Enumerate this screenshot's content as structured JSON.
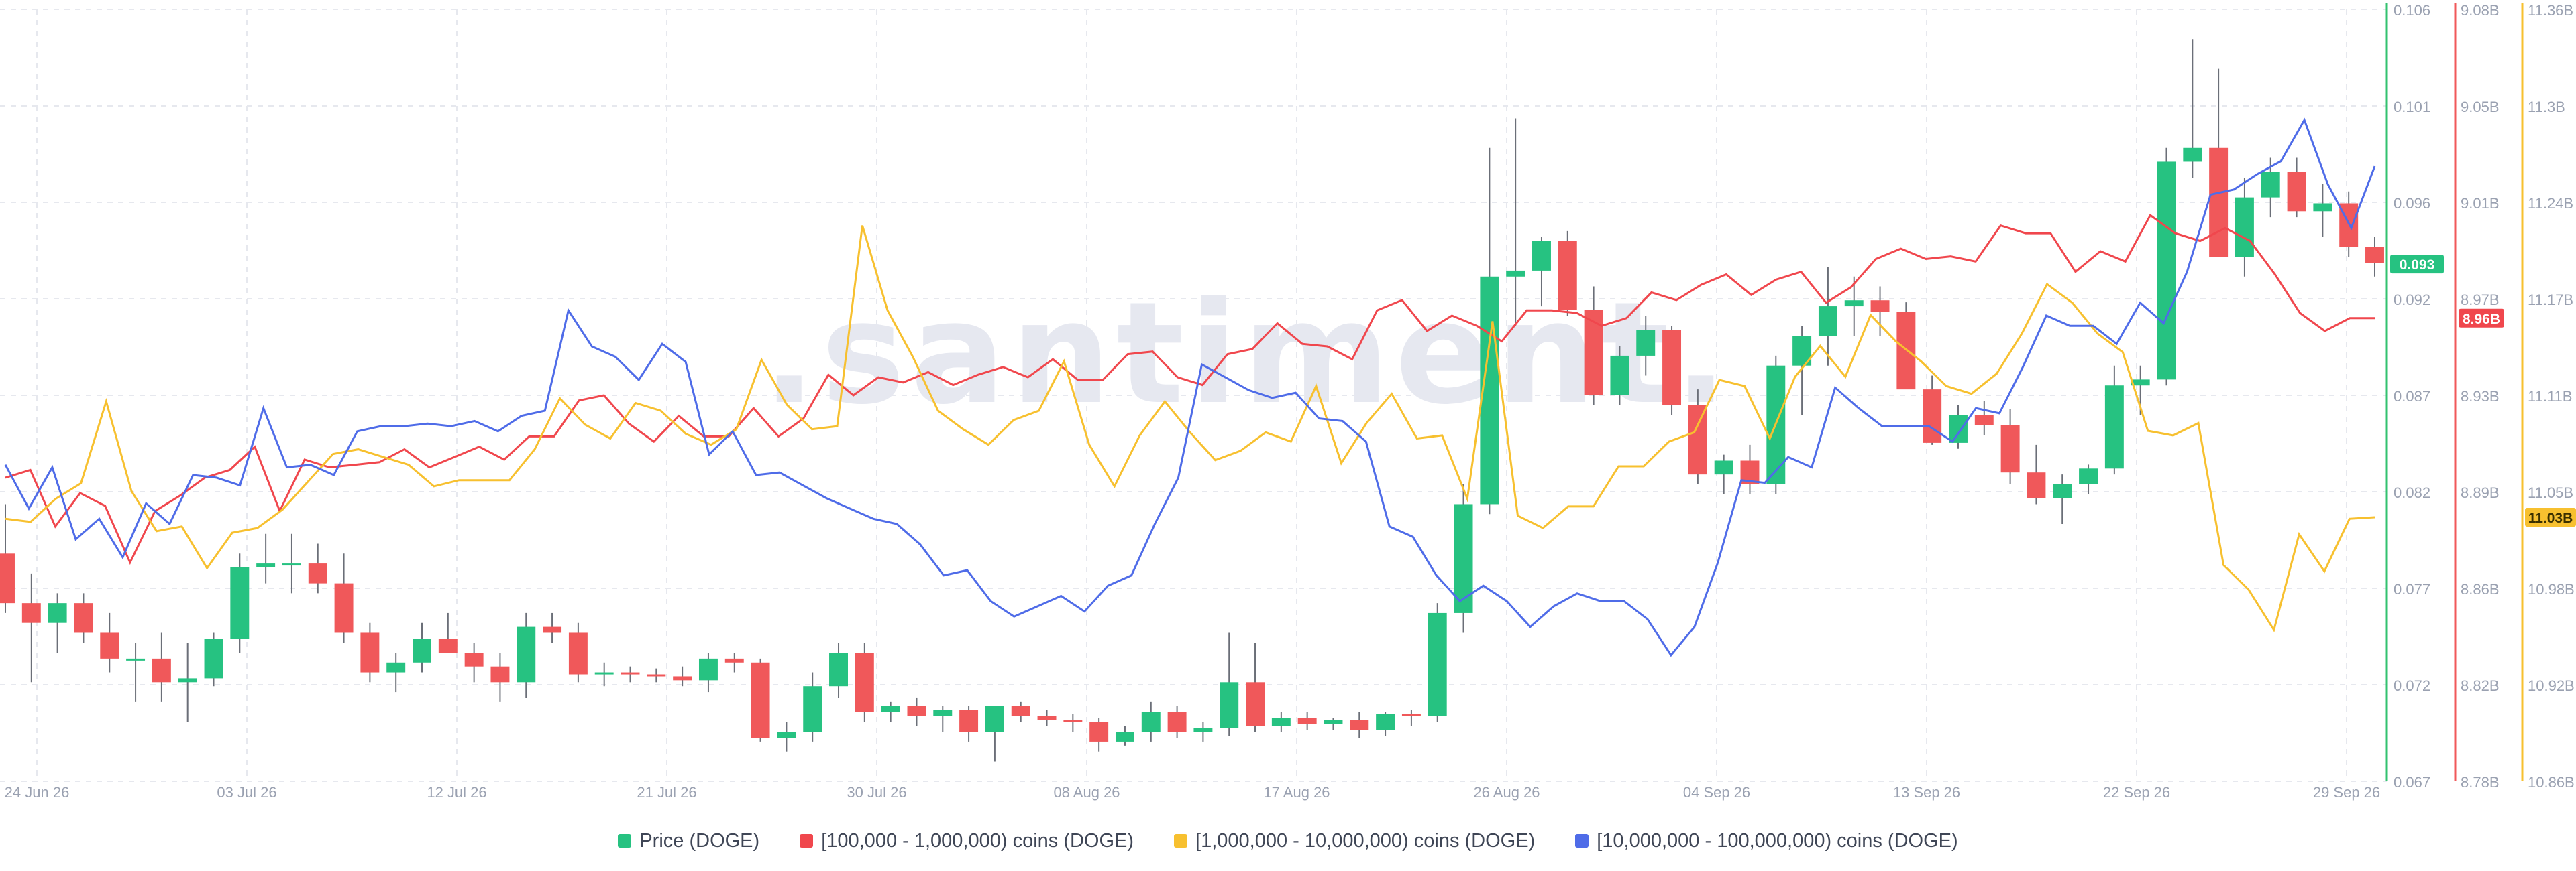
{
  "watermark": ".santiment.",
  "colors": {
    "up": "#26c281",
    "down": "#f0585a",
    "red_series": "#f0474d",
    "yellow_series": "#f7c02f",
    "blue_series": "#4f6ce8",
    "grid": "#e6e8ee",
    "tick_text": "#9aa1b1"
  },
  "chart_data": {
    "type": "line",
    "title": "",
    "x_ticks": [
      "24 Jun 26",
      "03 Jul 26",
      "12 Jul 26",
      "21 Jul 26",
      "30 Jul 26",
      "08 Aug 26",
      "17 Aug 26",
      "26 Aug 26",
      "04 Sep 26",
      "13 Sep 26",
      "22 Sep 26",
      "29 Sep 26"
    ],
    "price_axis": {
      "ticks": [
        "0.106",
        "0.101",
        "0.096",
        "0.092",
        "0.087",
        "0.082",
        "0.077",
        "0.072",
        "0.067"
      ],
      "ylim": [
        0.067,
        0.106
      ],
      "current_label": "0.093"
    },
    "red_axis": {
      "ticks": [
        "9.08B",
        "9.05B",
        "9.01B",
        "8.97B",
        "8.93B",
        "8.89B",
        "8.86B",
        "8.82B",
        "8.78B"
      ],
      "ylim_billions": [
        8.78,
        9.08
      ],
      "current_label": "8.96B"
    },
    "yellow_axis": {
      "ticks": [
        "11.36B",
        "11.3B",
        "11.24B",
        "11.17B",
        "11.11B",
        "11.05B",
        "10.98B",
        "10.92B",
        "10.86B"
      ],
      "ylim_billions": [
        10.86,
        11.36
      ],
      "current_label": "11.03B"
    },
    "series": [
      {
        "name": "Price (DOGE)",
        "kind": "candlestick",
        "ohlc": [
          [
            0.0785,
            0.081,
            0.0755,
            0.076
          ],
          [
            0.076,
            0.0775,
            0.072,
            0.075
          ],
          [
            0.075,
            0.0765,
            0.0735,
            0.076
          ],
          [
            0.076,
            0.0765,
            0.074,
            0.0745
          ],
          [
            0.0745,
            0.0755,
            0.0725,
            0.0732
          ],
          [
            0.0732,
            0.074,
            0.071,
            0.0732
          ],
          [
            0.0732,
            0.0745,
            0.071,
            0.072
          ],
          [
            0.072,
            0.074,
            0.07,
            0.0722
          ],
          [
            0.0722,
            0.0745,
            0.0718,
            0.0742
          ],
          [
            0.0742,
            0.0785,
            0.0735,
            0.0778
          ],
          [
            0.0778,
            0.0795,
            0.077,
            0.078
          ],
          [
            0.078,
            0.0795,
            0.0765,
            0.078
          ],
          [
            0.078,
            0.079,
            0.0765,
            0.077
          ],
          [
            0.077,
            0.0785,
            0.074,
            0.0745
          ],
          [
            0.0745,
            0.075,
            0.072,
            0.0725
          ],
          [
            0.0725,
            0.0735,
            0.0715,
            0.073
          ],
          [
            0.073,
            0.075,
            0.0725,
            0.0742
          ],
          [
            0.0742,
            0.0755,
            0.0735,
            0.0735
          ],
          [
            0.0735,
            0.074,
            0.072,
            0.0728
          ],
          [
            0.0728,
            0.0735,
            0.071,
            0.072
          ],
          [
            0.072,
            0.0755,
            0.0712,
            0.0748
          ],
          [
            0.0748,
            0.0755,
            0.074,
            0.0745
          ],
          [
            0.0745,
            0.075,
            0.072,
            0.0724
          ],
          [
            0.0724,
            0.073,
            0.0718,
            0.0725
          ],
          [
            0.0725,
            0.0728,
            0.072,
            0.0724
          ],
          [
            0.0724,
            0.0727,
            0.072,
            0.0723
          ],
          [
            0.0723,
            0.0728,
            0.0718,
            0.0721
          ],
          [
            0.0721,
            0.0735,
            0.0715,
            0.0732
          ],
          [
            0.0732,
            0.0735,
            0.0725,
            0.073
          ],
          [
            0.073,
            0.0732,
            0.069,
            0.0692
          ],
          [
            0.0692,
            0.07,
            0.0685,
            0.0695
          ],
          [
            0.0695,
            0.0725,
            0.069,
            0.0718
          ],
          [
            0.0718,
            0.074,
            0.0712,
            0.0735
          ],
          [
            0.0735,
            0.074,
            0.07,
            0.0705
          ],
          [
            0.0705,
            0.071,
            0.07,
            0.0708
          ],
          [
            0.0708,
            0.0712,
            0.0698,
            0.0703
          ],
          [
            0.0703,
            0.0708,
            0.0695,
            0.0706
          ],
          [
            0.0706,
            0.0708,
            0.069,
            0.0695
          ],
          [
            0.0695,
            0.0705,
            0.068,
            0.0708
          ],
          [
            0.0708,
            0.071,
            0.07,
            0.0703
          ],
          [
            0.0703,
            0.0706,
            0.0698,
            0.0701
          ],
          [
            0.0701,
            0.0704,
            0.0695,
            0.07
          ],
          [
            0.07,
            0.0702,
            0.0685,
            0.069
          ],
          [
            0.069,
            0.0698,
            0.0688,
            0.0695
          ],
          [
            0.0695,
            0.071,
            0.069,
            0.0705
          ],
          [
            0.0705,
            0.0708,
            0.0692,
            0.0695
          ],
          [
            0.0695,
            0.07,
            0.069,
            0.0697
          ],
          [
            0.0697,
            0.0745,
            0.0693,
            0.072
          ],
          [
            0.072,
            0.074,
            0.0695,
            0.0698
          ],
          [
            0.0698,
            0.0705,
            0.0695,
            0.0702
          ],
          [
            0.0702,
            0.0705,
            0.0696,
            0.0699
          ],
          [
            0.0699,
            0.0702,
            0.0696,
            0.0701
          ],
          [
            0.0701,
            0.0705,
            0.0692,
            0.0696
          ],
          [
            0.0696,
            0.0705,
            0.0693,
            0.0704
          ],
          [
            0.0704,
            0.0706,
            0.0698,
            0.0703
          ],
          [
            0.0703,
            0.076,
            0.07,
            0.0755
          ],
          [
            0.0755,
            0.082,
            0.0745,
            0.081
          ],
          [
            0.081,
            0.099,
            0.0805,
            0.0925
          ],
          [
            0.0925,
            0.1005,
            0.09,
            0.0928
          ],
          [
            0.0928,
            0.0945,
            0.091,
            0.0943
          ],
          [
            0.0943,
            0.0948,
            0.0905,
            0.0908
          ],
          [
            0.0908,
            0.092,
            0.086,
            0.0865
          ],
          [
            0.0865,
            0.089,
            0.086,
            0.0885
          ],
          [
            0.0885,
            0.0905,
            0.0875,
            0.0898
          ],
          [
            0.0898,
            0.09,
            0.0855,
            0.086
          ],
          [
            0.086,
            0.0868,
            0.082,
            0.0825
          ],
          [
            0.0825,
            0.0835,
            0.0815,
            0.0832
          ],
          [
            0.0832,
            0.084,
            0.0815,
            0.082
          ],
          [
            0.082,
            0.0885,
            0.0815,
            0.088
          ],
          [
            0.088,
            0.09,
            0.0855,
            0.0895
          ],
          [
            0.0895,
            0.093,
            0.088,
            0.091
          ],
          [
            0.091,
            0.0925,
            0.0895,
            0.0913
          ],
          [
            0.0913,
            0.092,
            0.0895,
            0.0907
          ],
          [
            0.0907,
            0.0912,
            0.087,
            0.0868
          ],
          [
            0.0868,
            0.0875,
            0.084,
            0.0841
          ],
          [
            0.0841,
            0.086,
            0.0838,
            0.0855
          ],
          [
            0.0855,
            0.0862,
            0.0845,
            0.085
          ],
          [
            0.085,
            0.0858,
            0.082,
            0.0826
          ],
          [
            0.0826,
            0.084,
            0.081,
            0.0813
          ],
          [
            0.0813,
            0.0825,
            0.08,
            0.082
          ],
          [
            0.082,
            0.083,
            0.0815,
            0.0828
          ],
          [
            0.0828,
            0.088,
            0.0825,
            0.087
          ],
          [
            0.087,
            0.088,
            0.0855,
            0.0873
          ],
          [
            0.0873,
            0.099,
            0.087,
            0.0983
          ],
          [
            0.0983,
            0.1045,
            0.0975,
            0.099
          ],
          [
            0.099,
            0.103,
            0.0935,
            0.0935
          ],
          [
            0.0935,
            0.0975,
            0.0925,
            0.0965
          ],
          [
            0.0965,
            0.0985,
            0.0955,
            0.0978
          ],
          [
            0.0978,
            0.0985,
            0.0955,
            0.0958
          ],
          [
            0.0958,
            0.0972,
            0.0945,
            0.0962
          ],
          [
            0.0962,
            0.0968,
            0.0935,
            0.094
          ],
          [
            0.094,
            0.0945,
            0.0925,
            0.0932
          ]
        ]
      },
      {
        "name": "[100,000  - 1,000,000) coins (DOGE)",
        "kind": "line",
        "unit": "B",
        "values": [
          8.898,
          8.901,
          8.879,
          8.892,
          8.887,
          8.865,
          8.885,
          8.891,
          8.898,
          8.901,
          8.91,
          8.885,
          8.905,
          8.902,
          8.903,
          8.904,
          8.909,
          8.902,
          8.906,
          8.91,
          8.905,
          8.914,
          8.914,
          8.928,
          8.93,
          8.919,
          8.912,
          8.922,
          8.914,
          8.914,
          8.925,
          8.914,
          8.921,
          8.938,
          8.93,
          8.937,
          8.935,
          8.939,
          8.934,
          8.938,
          8.941,
          8.937,
          8.944,
          8.936,
          8.936,
          8.946,
          8.947,
          8.937,
          8.934,
          8.946,
          8.948,
          8.958,
          8.95,
          8.949,
          8.944,
          8.963,
          8.967,
          8.955,
          8.961,
          8.957,
          8.951,
          8.963,
          8.963,
          8.962,
          8.957,
          8.96,
          8.97,
          8.967,
          8.973,
          8.977,
          8.969,
          8.975,
          8.978,
          8.966,
          8.972,
          8.983,
          8.987,
          8.983,
          8.984,
          8.982,
          8.996,
          8.993,
          8.993,
          8.978,
          8.986,
          8.982,
          9.0,
          8.993,
          8.99,
          8.995,
          8.99,
          8.977,
          8.962,
          8.955,
          8.96,
          8.96
        ]
      },
      {
        "name": "[1,000,000 - 10,000,000) coins (DOGE)",
        "kind": "line",
        "unit": "B",
        "values": [
          11.03,
          11.028,
          11.043,
          11.053,
          11.106,
          11.048,
          11.022,
          11.025,
          10.998,
          11.021,
          11.024,
          11.036,
          11.054,
          11.072,
          11.075,
          11.07,
          11.065,
          11.051,
          11.055,
          11.055,
          11.055,
          11.075,
          11.108,
          11.091,
          11.082,
          11.105,
          11.1,
          11.085,
          11.078,
          11.088,
          11.133,
          11.104,
          11.088,
          11.09,
          11.22,
          11.165,
          11.135,
          11.1,
          11.088,
          11.078,
          11.094,
          11.1,
          11.132,
          11.078,
          11.051,
          11.084,
          11.106,
          11.086,
          11.068,
          11.074,
          11.086,
          11.08,
          11.116,
          11.066,
          11.092,
          11.111,
          11.082,
          11.084,
          11.043,
          11.158,
          11.032,
          11.024,
          11.038,
          11.038,
          11.064,
          11.064,
          11.08,
          11.086,
          11.12,
          11.116,
          11.082,
          11.122,
          11.142,
          11.122,
          11.162,
          11.145,
          11.132,
          11.116,
          11.111,
          11.124,
          11.15,
          11.182,
          11.17,
          11.15,
          11.138,
          11.087,
          11.084,
          11.092,
          11.0,
          10.984,
          10.958,
          11.02,
          10.996,
          11.03,
          11.031
        ]
      },
      {
        "name": "[10,000,000 - 100,000,000) coins (DOGE)",
        "kind": "line",
        "unit": "B",
        "values": [
          8.903,
          8.886,
          8.902,
          8.874,
          8.882,
          8.867,
          8.888,
          8.88,
          8.899,
          8.898,
          8.895,
          8.925,
          8.902,
          8.903,
          8.899,
          8.916,
          8.918,
          8.918,
          8.919,
          8.918,
          8.92,
          8.916,
          8.922,
          8.924,
          8.963,
          8.949,
          8.945,
          8.936,
          8.95,
          8.943,
          8.907,
          8.916,
          8.899,
          8.9,
          8.895,
          8.89,
          8.886,
          8.882,
          8.88,
          8.872,
          8.86,
          8.862,
          8.85,
          8.844,
          8.848,
          8.852,
          8.846,
          8.856,
          8.86,
          8.88,
          8.898,
          8.942,
          8.937,
          8.932,
          8.929,
          8.931,
          8.921,
          8.92,
          8.912,
          8.879,
          8.875,
          8.86,
          8.85,
          8.856,
          8.85,
          8.84,
          8.848,
          8.853,
          8.85,
          8.85,
          8.843,
          8.829,
          8.84,
          8.865,
          8.897,
          8.896,
          8.906,
          8.902,
          8.933,
          8.925,
          8.918,
          8.918,
          8.918,
          8.912,
          8.925,
          8.923,
          8.941,
          8.961,
          8.957,
          8.957,
          8.95,
          8.966,
          8.958,
          8.978,
          9.008,
          9.01,
          9.016,
          9.021,
          9.037,
          9.012,
          8.995,
          9.019
        ]
      }
    ]
  },
  "legend": {
    "price": "Price (DOGE)",
    "red": "[100,000  - 1,000,000) coins (DOGE)",
    "yellow": "[1,000,000 - 10,000,000) coins (DOGE)",
    "blue": "[10,000,000 - 100,000,000) coins (DOGE)"
  }
}
